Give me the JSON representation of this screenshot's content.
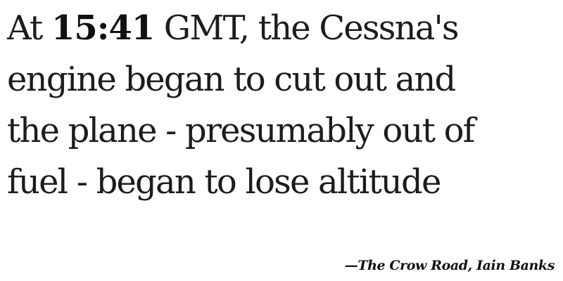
{
  "quote": {
    "prefix": "At ",
    "time": "15:41",
    "lines": [
      " GMT, the Cessna's",
      "engine began to cut out and",
      "the plane - presumably out of",
      "fuel - began to lose altitude"
    ]
  },
  "attribution": {
    "text": "—The Crow Road, Iain Banks"
  },
  "colors": {
    "text": "#1c1c1c",
    "background": "#ffffff"
  }
}
